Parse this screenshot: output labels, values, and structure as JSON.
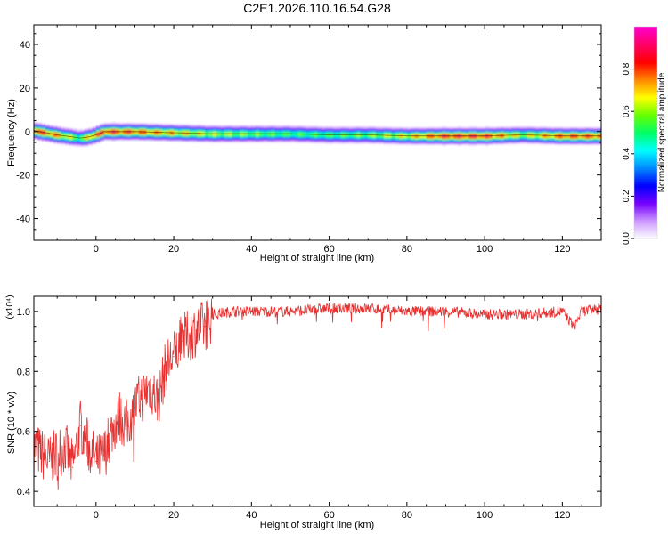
{
  "title": "C2E1.2026.110.16.54.G28",
  "chart_data": [
    {
      "type": "heatmap",
      "xlabel": "Height of straight line (km)",
      "ylabel": "Frequency (Hz)",
      "xlim": [
        -16,
        130
      ],
      "ylim": [
        -50,
        49
      ],
      "xticks": [
        0,
        20,
        40,
        60,
        80,
        100,
        120
      ],
      "yticks": [
        -40,
        -20,
        0,
        20,
        40
      ],
      "colorbar": {
        "label": "Normalized spectral amplitude",
        "range": [
          0,
          1
        ],
        "ticks": [
          0.0,
          0.2,
          0.4,
          0.6,
          0.8
        ],
        "colors": [
          "#ffffff",
          "#cc99ff",
          "#7700ff",
          "#0000ff",
          "#0088ff",
          "#00ffff",
          "#00ff66",
          "#66ff00",
          "#ffff00",
          "#ff8800",
          "#ff0000",
          "#ff0066",
          "#ff00cc"
        ]
      },
      "ridge": {
        "x": [
          -16,
          -10,
          -4,
          -2,
          0,
          2,
          10,
          20,
          30,
          40,
          50,
          60,
          70,
          80,
          90,
          100,
          110,
          120,
          130
        ],
        "freq": [
          0.5,
          -1.5,
          -3,
          -2.5,
          -1.5,
          0,
          0,
          -0.5,
          -1,
          -1,
          -1,
          -1.5,
          -1.5,
          -2,
          -2,
          -2,
          -1.5,
          -2,
          -2
        ],
        "amplitude": [
          0.95,
          0.85,
          0.6,
          0.8,
          0.9,
          0.95,
          0.9,
          0.8,
          0.7,
          0.65,
          0.6,
          0.6,
          0.65,
          0.75,
          0.95,
          0.95,
          0.7,
          0.9,
          0.9
        ]
      }
    },
    {
      "type": "line",
      "xlabel": "Height of straight line (km)",
      "ylabel": "SNR (10 * v/v)",
      "scale_note": "(x10⁴)",
      "xlim": [
        -16,
        130
      ],
      "ylim": [
        0.35,
        1.05
      ],
      "xticks": [
        0,
        20,
        40,
        60,
        80,
        100,
        120
      ],
      "yticks": [
        0.4,
        0.6,
        0.8,
        1.0
      ],
      "color": "#e83030",
      "series": [
        {
          "x": [
            -16,
            -12,
            -8,
            -6,
            -4,
            -2,
            0,
            2,
            4,
            6,
            8,
            10,
            12,
            14,
            16,
            18,
            20,
            22,
            24,
            26,
            28,
            30,
            35,
            40,
            50,
            60,
            70,
            80,
            90,
            100,
            110,
            120,
            123,
            125,
            130
          ],
          "y": [
            0.55,
            0.5,
            0.55,
            0.48,
            0.62,
            0.55,
            0.5,
            0.52,
            0.6,
            0.65,
            0.62,
            0.68,
            0.72,
            0.75,
            0.7,
            0.82,
            0.85,
            0.9,
            0.92,
            0.94,
            0.95,
            0.99,
            1.0,
            1.0,
            1.0,
            1.01,
            1.01,
            1.0,
            1.0,
            0.99,
            0.99,
            1.0,
            0.95,
            1.0,
            1.01
          ]
        }
      ]
    }
  ]
}
